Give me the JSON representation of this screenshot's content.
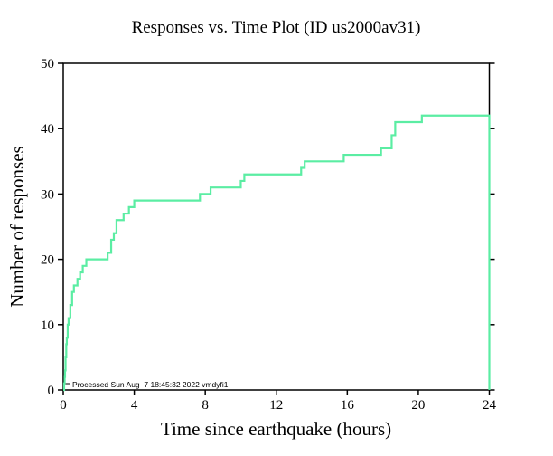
{
  "chart_data": {
    "type": "line",
    "subtype": "step",
    "title": "Responses vs. Time Plot (ID us2000av31)",
    "xlabel": "Time since earthquake (hours)",
    "ylabel": "Number of responses",
    "xlim": [
      0,
      24
    ],
    "ylim": [
      0,
      50
    ],
    "xticks": [
      0,
      4,
      8,
      12,
      16,
      20,
      24
    ],
    "yticks": [
      0,
      10,
      20,
      30,
      40,
      50
    ],
    "grid": false,
    "legend": false,
    "line_color": "#5BEDA3",
    "axis_color": "#000000",
    "background": "#FFFFFF",
    "annotation": "Processed Sun Aug  7 18:45:32 2022 vmdyfi1",
    "max_responses": 42,
    "points": [
      [
        0,
        0
      ],
      [
        0.05,
        1
      ],
      [
        0.08,
        2
      ],
      [
        0.1,
        3
      ],
      [
        0.13,
        5
      ],
      [
        0.17,
        7
      ],
      [
        0.2,
        8
      ],
      [
        0.25,
        10
      ],
      [
        0.3,
        11
      ],
      [
        0.4,
        13
      ],
      [
        0.5,
        15
      ],
      [
        0.6,
        16
      ],
      [
        0.8,
        17
      ],
      [
        0.95,
        18
      ],
      [
        1.1,
        19
      ],
      [
        1.3,
        20
      ],
      [
        2.5,
        21
      ],
      [
        2.7,
        23
      ],
      [
        2.85,
        24
      ],
      [
        3.0,
        26
      ],
      [
        3.4,
        27
      ],
      [
        3.7,
        28
      ],
      [
        4.0,
        29
      ],
      [
        7.7,
        30
      ],
      [
        8.3,
        31
      ],
      [
        10.0,
        32
      ],
      [
        10.2,
        33
      ],
      [
        13.4,
        34
      ],
      [
        13.6,
        35
      ],
      [
        15.8,
        36
      ],
      [
        17.9,
        37
      ],
      [
        18.5,
        39
      ],
      [
        18.7,
        41
      ],
      [
        20.2,
        42
      ],
      [
        24,
        0
      ]
    ]
  }
}
